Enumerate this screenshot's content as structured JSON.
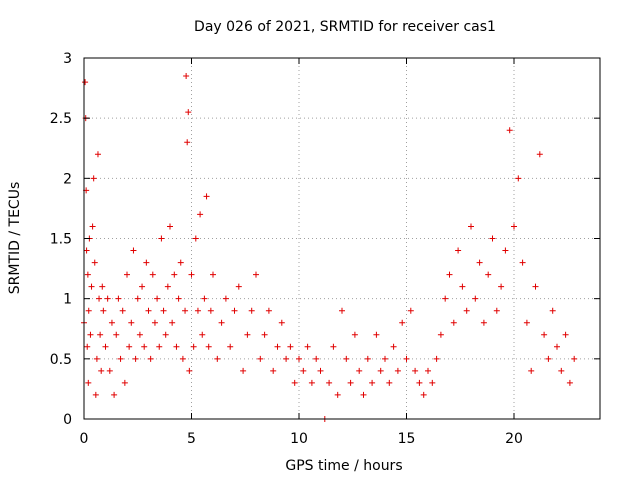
{
  "chart_data": {
    "type": "scatter",
    "title": "Day 026 of 2021, SRMTID for receiver cas1",
    "xlabel": "GPS time / hours",
    "ylabel": "SRMTID / TECUs",
    "xlim": [
      0,
      24
    ],
    "ylim": [
      0,
      3
    ],
    "xticks": [
      0,
      5,
      10,
      15,
      20
    ],
    "xtick_labels": [
      "0",
      "5",
      "10",
      "15",
      "20"
    ],
    "yticks": [
      0,
      0.5,
      1,
      1.5,
      2,
      2.5,
      3
    ],
    "ytick_labels": [
      "0",
      "0.5",
      "1",
      "1.5",
      "2",
      "2.5",
      "3"
    ],
    "grid": true,
    "marker": "+",
    "color": "#e00000",
    "series": [
      {
        "name": "SRMTID",
        "x": [
          0.0,
          0.05,
          0.08,
          0.1,
          0.12,
          0.15,
          0.18,
          0.2,
          0.22,
          0.25,
          0.3,
          0.35,
          0.4,
          0.45,
          0.5,
          0.55,
          0.6,
          0.65,
          0.7,
          0.75,
          0.8,
          0.85,
          0.9,
          1.0,
          1.1,
          1.2,
          1.3,
          1.4,
          1.5,
          1.6,
          1.7,
          1.8,
          1.9,
          2.0,
          2.1,
          2.2,
          2.3,
          2.4,
          2.5,
          2.6,
          2.7,
          2.8,
          2.9,
          3.0,
          3.1,
          3.2,
          3.3,
          3.4,
          3.5,
          3.6,
          3.7,
          3.8,
          3.9,
          4.0,
          4.1,
          4.2,
          4.3,
          4.4,
          4.5,
          4.6,
          4.7,
          4.75,
          4.8,
          4.85,
          4.9,
          5.0,
          5.1,
          5.2,
          5.3,
          5.4,
          5.5,
          5.6,
          5.7,
          5.8,
          5.9,
          6.0,
          6.2,
          6.4,
          6.6,
          6.8,
          7.0,
          7.2,
          7.4,
          7.6,
          7.8,
          8.0,
          8.2,
          8.4,
          8.6,
          8.8,
          9.0,
          9.2,
          9.4,
          9.6,
          9.8,
          10.0,
          10.2,
          10.4,
          10.6,
          10.8,
          11.0,
          11.2,
          11.4,
          11.6,
          11.8,
          12.0,
          12.2,
          12.4,
          12.6,
          12.8,
          13.0,
          13.2,
          13.4,
          13.6,
          13.8,
          14.0,
          14.2,
          14.4,
          14.6,
          14.8,
          15.0,
          15.2,
          15.4,
          15.6,
          15.8,
          16.0,
          16.2,
          16.4,
          16.6,
          16.8,
          17.0,
          17.2,
          17.4,
          17.6,
          17.8,
          18.0,
          18.2,
          18.4,
          18.6,
          18.8,
          19.0,
          19.2,
          19.4,
          19.6,
          19.8,
          20.0,
          20.2,
          20.4,
          20.6,
          20.8,
          21.0,
          21.2,
          21.4,
          21.6,
          21.8,
          22.0,
          22.2,
          22.4,
          22.6,
          22.8
        ],
        "y": [
          0.8,
          2.8,
          2.5,
          1.9,
          1.4,
          0.6,
          1.2,
          0.3,
          0.9,
          1.5,
          0.7,
          1.1,
          1.6,
          2.0,
          1.3,
          0.2,
          0.5,
          2.2,
          1.0,
          0.7,
          0.4,
          1.1,
          0.9,
          0.6,
          1.0,
          0.4,
          0.8,
          0.2,
          0.7,
          1.0,
          0.5,
          0.9,
          0.3,
          1.2,
          0.6,
          0.8,
          1.4,
          0.5,
          1.0,
          0.7,
          1.1,
          0.6,
          1.3,
          0.9,
          0.5,
          1.2,
          0.8,
          1.0,
          0.6,
          1.5,
          0.9,
          0.7,
          1.1,
          1.6,
          0.8,
          1.2,
          0.6,
          1.0,
          1.3,
          0.5,
          0.9,
          2.85,
          2.3,
          2.55,
          0.4,
          1.2,
          0.6,
          1.5,
          0.9,
          1.7,
          0.7,
          1.0,
          1.85,
          0.6,
          0.9,
          1.2,
          0.5,
          0.8,
          1.0,
          0.6,
          0.9,
          1.1,
          0.4,
          0.7,
          0.9,
          1.2,
          0.5,
          0.7,
          0.9,
          0.4,
          0.6,
          0.8,
          0.5,
          0.6,
          0.3,
          0.5,
          0.4,
          0.6,
          0.3,
          0.5,
          0.4,
          0.0,
          0.3,
          0.6,
          0.2,
          0.9,
          0.5,
          0.3,
          0.7,
          0.4,
          0.2,
          0.5,
          0.3,
          0.7,
          0.4,
          0.5,
          0.3,
          0.6,
          0.4,
          0.8,
          0.5,
          0.9,
          0.4,
          0.3,
          0.2,
          0.4,
          0.3,
          0.5,
          0.7,
          1.0,
          1.2,
          0.8,
          1.4,
          1.1,
          0.9,
          1.6,
          1.0,
          1.3,
          0.8,
          1.2,
          1.5,
          0.9,
          1.1,
          1.4,
          2.4,
          1.6,
          2.0,
          1.3,
          0.8,
          0.4,
          1.1,
          2.2,
          0.7,
          0.5,
          0.9,
          0.6,
          0.4,
          0.7,
          0.3,
          0.5
        ]
      }
    ]
  }
}
